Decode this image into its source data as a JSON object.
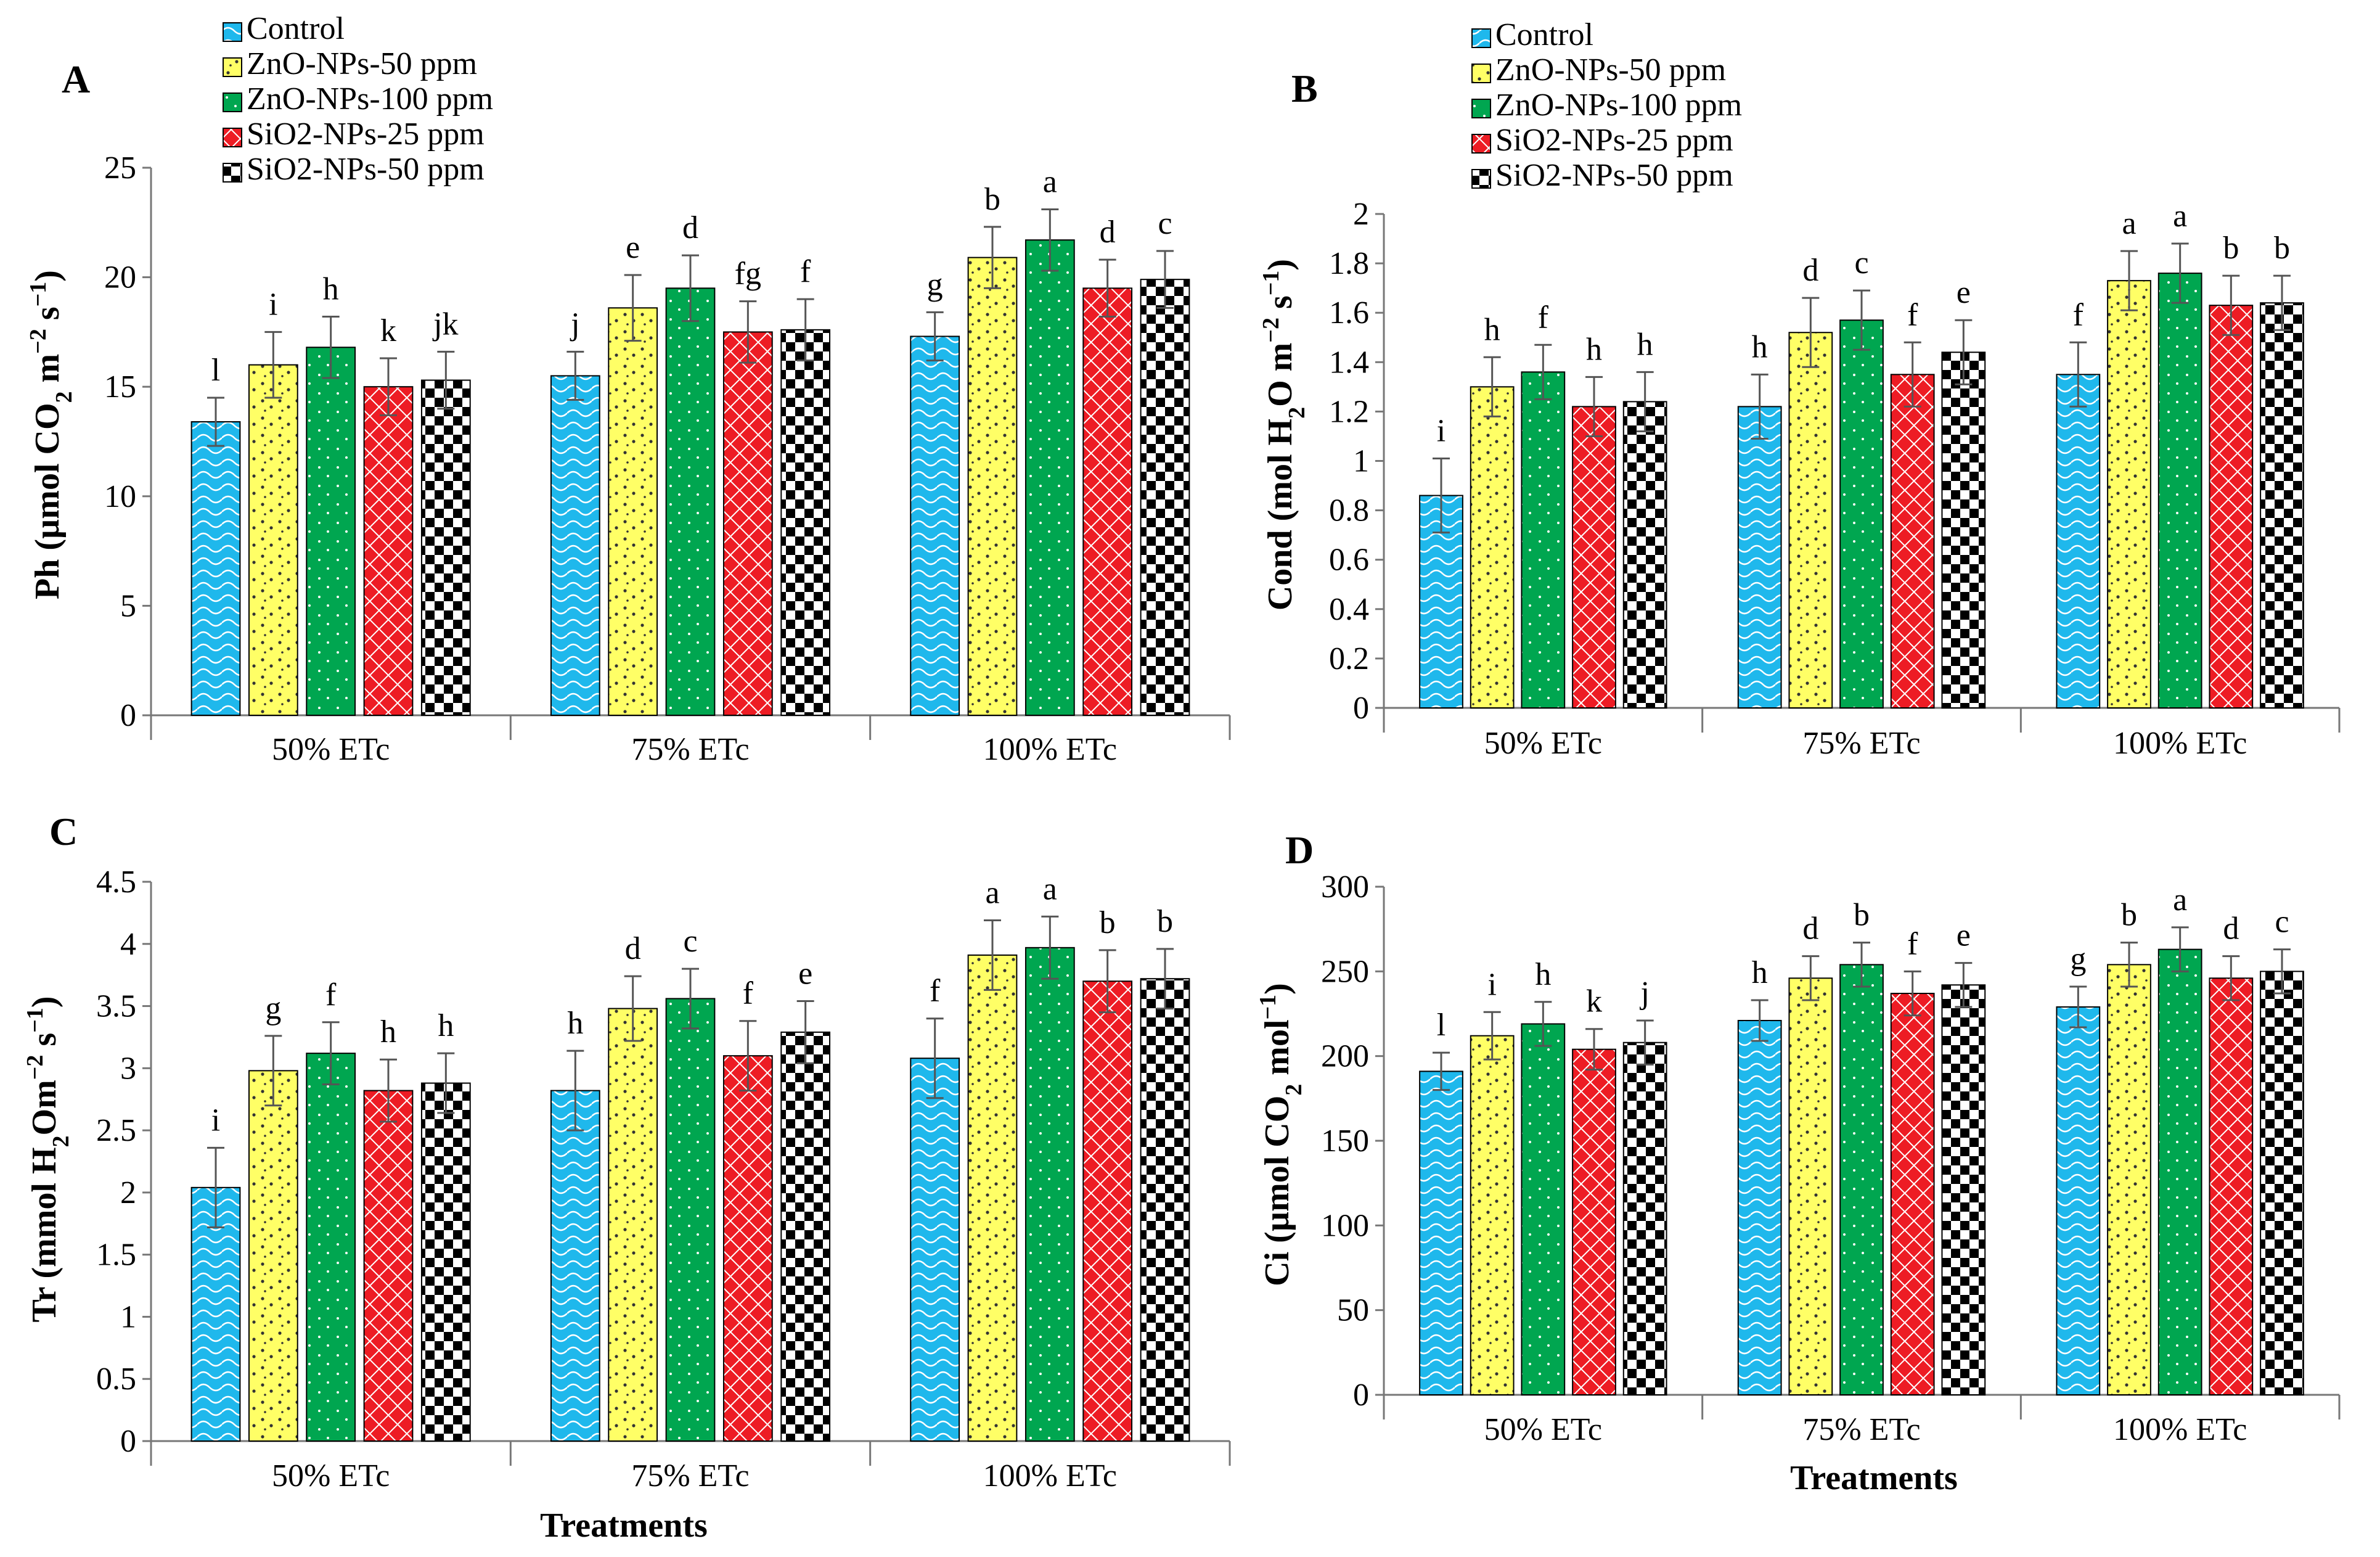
{
  "figure": {
    "legend": [
      {
        "label": "Control",
        "color": "#1fb8ec",
        "pattern": "wave"
      },
      {
        "label": "ZnO-NPs-50 ppm",
        "color": "#ffff66",
        "pattern": "dots"
      },
      {
        "label": "ZnO-NPs-100 ppm",
        "color": "#00a650",
        "pattern": "fine"
      },
      {
        "label": "SiO2-NPs-25 ppm",
        "color": "#ed1c24",
        "pattern": "lattice"
      },
      {
        "label": "SiO2-NPs-50 ppm",
        "color": "#000000",
        "pattern": "checker"
      }
    ],
    "series_colors": {
      "Control": "#1fb8ec",
      "ZnO-NPs-50 ppm": "#ffff66",
      "ZnO-NPs-100 ppm": "#00a650",
      "SiO2-NPs-25 ppm": "#ed1c24",
      "SiO2-NPs-50 ppm": "#000000"
    }
  },
  "chart_data": [
    {
      "panel": "A",
      "type": "bar",
      "ylabel_main": "Ph (µmol CO",
      "ylabel_sub": "2",
      "ylabel_rest": " m",
      "ylabel_sup1": "−2",
      "ylabel_rest2": " s",
      "ylabel_sup2": "−1",
      "ylabel_end": ")",
      "xlabel": "",
      "ylim": [
        0,
        25
      ],
      "yticks": [
        "0",
        "5",
        "10",
        "15",
        "20",
        "25"
      ],
      "categories": [
        "50% ETc",
        "75% ETc",
        "100% ETc"
      ],
      "series": [
        {
          "name": "Control",
          "values": [
            13.4,
            15.5,
            17.3
          ],
          "errors": [
            1.1,
            1.1,
            1.1
          ],
          "letters": [
            "l",
            "j",
            "g"
          ]
        },
        {
          "name": "ZnO-NPs-50 ppm",
          "values": [
            16.0,
            18.6,
            20.9
          ],
          "errors": [
            1.5,
            1.5,
            1.4
          ],
          "letters": [
            "i",
            "e",
            "b"
          ]
        },
        {
          "name": "ZnO-NPs-100 ppm",
          "values": [
            16.8,
            19.5,
            21.7
          ],
          "errors": [
            1.4,
            1.5,
            1.4
          ],
          "letters": [
            "h",
            "d",
            "a"
          ]
        },
        {
          "name": "SiO2-NPs-25 ppm",
          "values": [
            15.0,
            17.5,
            19.5
          ],
          "errors": [
            1.3,
            1.4,
            1.3
          ],
          "letters": [
            "k",
            "fg",
            "d"
          ]
        },
        {
          "name": "SiO2-NPs-50 ppm",
          "values": [
            15.3,
            17.6,
            19.9
          ],
          "errors": [
            1.3,
            1.4,
            1.3
          ],
          "letters": [
            "jk",
            "f",
            "c"
          ]
        }
      ]
    },
    {
      "panel": "B",
      "type": "bar",
      "ylabel_main": "Cond  (mol H",
      "ylabel_sub": "2",
      "ylabel_rest": "O m",
      "ylabel_sup1": "−2",
      "ylabel_rest2": " s",
      "ylabel_sup2": "−1",
      "ylabel_end": ")",
      "xlabel": "",
      "ylim": [
        0,
        2
      ],
      "yticks": [
        "0",
        "0.2",
        "0.4",
        "0.6",
        "0.8",
        "1",
        "1.2",
        "1.4",
        "1.6",
        "1.8",
        "2"
      ],
      "categories": [
        "50% ETc",
        "75% ETc",
        "100% ETc"
      ],
      "series": [
        {
          "name": "Control",
          "values": [
            0.86,
            1.22,
            1.35
          ],
          "errors": [
            0.15,
            0.13,
            0.13
          ],
          "letters": [
            "i",
            "h",
            "f"
          ]
        },
        {
          "name": "ZnO-NPs-50 ppm",
          "values": [
            1.3,
            1.52,
            1.73
          ],
          "errors": [
            0.12,
            0.14,
            0.12
          ],
          "letters": [
            "h",
            "d",
            "a"
          ]
        },
        {
          "name": "ZnO-NPs-100 ppm",
          "values": [
            1.36,
            1.57,
            1.76
          ],
          "errors": [
            0.11,
            0.12,
            0.12
          ],
          "letters": [
            "f",
            "c",
            "a"
          ]
        },
        {
          "name": "SiO2-NPs-25 ppm",
          "values": [
            1.22,
            1.35,
            1.63
          ],
          "errors": [
            0.12,
            0.13,
            0.12
          ],
          "letters": [
            "h",
            "f",
            "b"
          ]
        },
        {
          "name": "SiO2-NPs-50 ppm",
          "values": [
            1.24,
            1.44,
            1.64
          ],
          "errors": [
            0.12,
            0.13,
            0.11
          ],
          "letters": [
            "h",
            "e",
            "b"
          ]
        }
      ]
    },
    {
      "panel": "C",
      "type": "bar",
      "ylabel_main": "Tr  (mmol H",
      "ylabel_sub": "2",
      "ylabel_rest": "Om",
      "ylabel_sup1": "−2",
      "ylabel_rest2": " s",
      "ylabel_sup2": "−1",
      "ylabel_end": ")",
      "xlabel": "Treatments",
      "ylim": [
        0,
        4.5
      ],
      "yticks": [
        "0",
        "0.5",
        "1",
        "1.5",
        "2",
        "2.5",
        "3",
        "3.5",
        "4",
        "4.5"
      ],
      "categories": [
        "50% ETc",
        "75% ETc",
        "100% ETc"
      ],
      "series": [
        {
          "name": "Control",
          "values": [
            2.04,
            2.82,
            3.08
          ],
          "errors": [
            0.32,
            0.32,
            0.32
          ],
          "letters": [
            "i",
            "h",
            "f"
          ]
        },
        {
          "name": "ZnO-NPs-50 ppm",
          "values": [
            2.98,
            3.48,
            3.91
          ],
          "errors": [
            0.28,
            0.26,
            0.28
          ],
          "letters": [
            "g",
            "d",
            "a"
          ]
        },
        {
          "name": "ZnO-NPs-100 ppm",
          "values": [
            3.12,
            3.56,
            3.97
          ],
          "errors": [
            0.25,
            0.24,
            0.25
          ],
          "letters": [
            "f",
            "c",
            "a"
          ]
        },
        {
          "name": "SiO2-NPs-25 ppm",
          "values": [
            2.82,
            3.1,
            3.7
          ],
          "errors": [
            0.25,
            0.28,
            0.25
          ],
          "letters": [
            "h",
            "f",
            "b"
          ]
        },
        {
          "name": "SiO2-NPs-50 ppm",
          "values": [
            2.88,
            3.29,
            3.72
          ],
          "errors": [
            0.24,
            0.25,
            0.24
          ],
          "letters": [
            "h",
            "e",
            "b"
          ]
        }
      ]
    },
    {
      "panel": "D",
      "type": "bar",
      "ylabel_main": "Ci  (µmol CO",
      "ylabel_sub": "2",
      "ylabel_rest": " mol",
      "ylabel_sup1": "−1",
      "ylabel_rest2": "",
      "ylabel_sup2": "",
      "ylabel_end": ")",
      "xlabel": "Treatments",
      "ylim": [
        0,
        300
      ],
      "yticks": [
        "0",
        "50",
        "100",
        "150",
        "200",
        "250",
        "300"
      ],
      "categories": [
        "50% ETc",
        "75% ETc",
        "100% ETc"
      ],
      "series": [
        {
          "name": "Control",
          "values": [
            191,
            221,
            229
          ],
          "errors": [
            11,
            12,
            12
          ],
          "letters": [
            "l",
            "h",
            "g"
          ]
        },
        {
          "name": "ZnO-NPs-50 ppm",
          "values": [
            212,
            246,
            254
          ],
          "errors": [
            14,
            13,
            13
          ],
          "letters": [
            "i",
            "d",
            "b"
          ]
        },
        {
          "name": "ZnO-NPs-100 ppm",
          "values": [
            219,
            254,
            263
          ],
          "errors": [
            13,
            13,
            13
          ],
          "letters": [
            "h",
            "b",
            "a"
          ]
        },
        {
          "name": "SiO2-NPs-25 ppm",
          "values": [
            204,
            237,
            246
          ],
          "errors": [
            12,
            13,
            13
          ],
          "letters": [
            "k",
            "f",
            "d"
          ]
        },
        {
          "name": "SiO2-NPs-50 ppm",
          "values": [
            208,
            242,
            250
          ],
          "errors": [
            13,
            13,
            13
          ],
          "letters": [
            "j",
            "e",
            "c"
          ]
        }
      ]
    }
  ]
}
